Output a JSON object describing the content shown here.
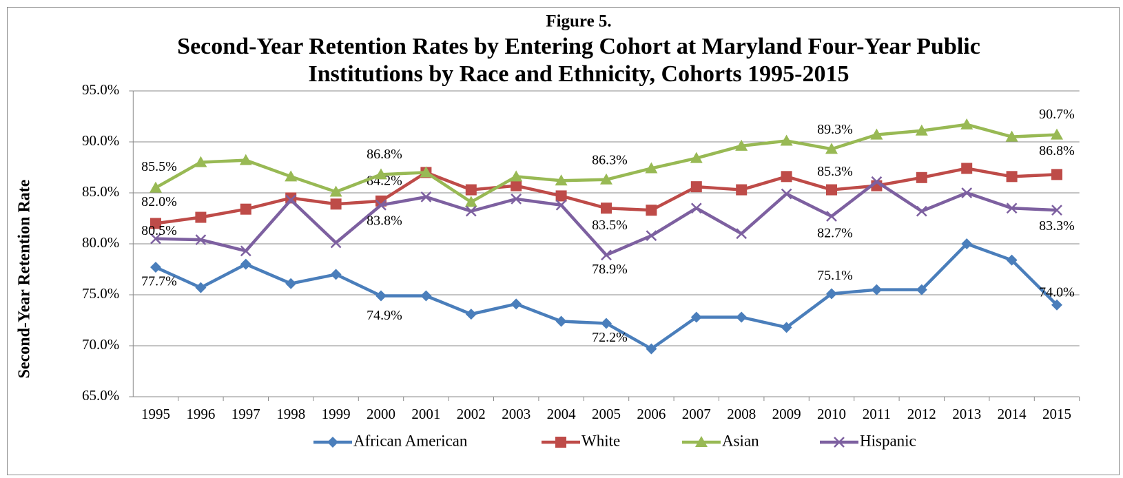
{
  "chart_data": {
    "type": "line",
    "figure_label": "Figure 5.",
    "title": [
      "Second-Year Retention Rates by Entering Cohort at Maryland Four-Year Public",
      "Institutions by Race and Ethnicity, Cohorts 1995-2015"
    ],
    "y_axis_label": "Second-Year Retention Rate",
    "categories": [
      "1995",
      "1996",
      "1997",
      "1998",
      "1999",
      "2000",
      "2001",
      "2002",
      "2003",
      "2004",
      "2005",
      "2006",
      "2007",
      "2008",
      "2009",
      "2010",
      "2011",
      "2012",
      "2013",
      "2014",
      "2015"
    ],
    "ylim": [
      65,
      95
    ],
    "yticks": [
      {
        "value": 65,
        "label": "65.0%"
      },
      {
        "value": 70,
        "label": "70.0%"
      },
      {
        "value": 75,
        "label": "75.0%"
      },
      {
        "value": 80,
        "label": "80.0%"
      },
      {
        "value": 85,
        "label": "85.0%"
      },
      {
        "value": 90,
        "label": "90.0%"
      },
      {
        "value": 95,
        "label": "95.0%"
      }
    ],
    "grid": true,
    "legend": "bottom",
    "series": [
      {
        "name": "African American",
        "color": "#4a7ebb",
        "marker": "diamond",
        "values": [
          77.7,
          75.7,
          78.0,
          76.1,
          77.0,
          74.9,
          74.9,
          73.1,
          74.1,
          72.4,
          72.2,
          69.7,
          72.8,
          72.8,
          71.8,
          75.1,
          75.5,
          75.5,
          80.0,
          78.4,
          74.0
        ],
        "value_labels": [
          "77.7%",
          null,
          null,
          null,
          null,
          "74.9%",
          null,
          null,
          null,
          null,
          "72.2%",
          null,
          null,
          null,
          null,
          "75.1%",
          null,
          null,
          null,
          null,
          "74.0%"
        ]
      },
      {
        "name": "White",
        "color": "#be4b48",
        "marker": "square",
        "values": [
          82.0,
          82.6,
          83.4,
          84.5,
          83.9,
          84.2,
          87.0,
          85.3,
          85.7,
          84.7,
          83.5,
          83.3,
          85.6,
          85.3,
          86.6,
          85.3,
          85.7,
          86.5,
          87.4,
          86.6,
          86.8
        ],
        "value_labels": [
          "82.0%",
          null,
          null,
          null,
          null,
          "84.2%",
          null,
          null,
          null,
          null,
          "83.5%",
          null,
          null,
          null,
          null,
          "85.3%",
          null,
          null,
          null,
          null,
          "86.8%"
        ]
      },
      {
        "name": "Asian",
        "color": "#98b954",
        "marker": "triangle",
        "values": [
          85.5,
          88.0,
          88.2,
          86.6,
          85.1,
          86.8,
          87.0,
          84.1,
          86.6,
          86.2,
          86.3,
          87.4,
          88.4,
          89.6,
          90.1,
          89.3,
          90.7,
          91.1,
          91.7,
          90.5,
          90.7
        ],
        "value_labels": [
          "85.5%",
          null,
          null,
          null,
          null,
          "86.8%",
          null,
          null,
          null,
          null,
          "86.3%",
          null,
          null,
          null,
          null,
          "89.3%",
          null,
          null,
          null,
          null,
          "90.7%"
        ]
      },
      {
        "name": "Hispanic",
        "color": "#7d60a0",
        "marker": "x",
        "values": [
          80.5,
          80.4,
          79.3,
          84.3,
          80.1,
          83.8,
          84.6,
          83.2,
          84.4,
          83.8,
          78.9,
          80.8,
          83.5,
          81.0,
          84.9,
          82.7,
          86.1,
          83.2,
          85.0,
          83.5,
          83.3
        ],
        "value_labels": [
          "80.5%",
          null,
          null,
          null,
          null,
          "83.8%",
          null,
          null,
          null,
          null,
          "78.9%",
          null,
          null,
          null,
          null,
          "82.7%",
          null,
          null,
          null,
          null,
          "83.3%"
        ]
      }
    ]
  }
}
